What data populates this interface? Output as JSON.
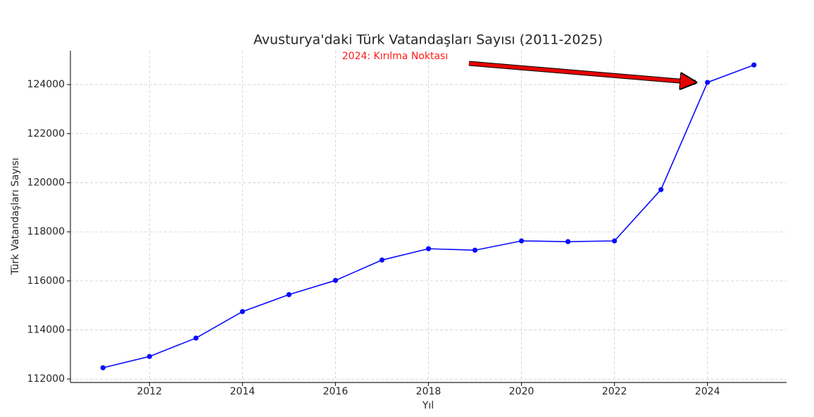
{
  "chart_data": {
    "type": "line",
    "title": "Avusturya'daki Türk Vatandaşları Sayısı (2011-2025)",
    "x_label": "Yıl",
    "y_label": "Türk Vatandaşları Sayısı",
    "annotation": "2024: Kırılma Noktası",
    "x": [
      2011,
      2012,
      2013,
      2014,
      2015,
      2016,
      2017,
      2018,
      2019,
      2020,
      2021,
      2022,
      2023,
      2024,
      2025
    ],
    "series": [
      {
        "name": "Türk Vatandaşları",
        "color": "#0a0aff",
        "values": [
          112460,
          112920,
          113670,
          114750,
          115440,
          116020,
          116850,
          117310,
          117250,
          117630,
          117600,
          117630,
          119720,
          124090,
          124800
        ]
      }
    ],
    "xlim": [
      2010.3,
      2025.7
    ],
    "ylim": [
      111860,
      125380
    ],
    "xticks": [
      2012,
      2014,
      2016,
      2018,
      2020,
      2022,
      2024
    ],
    "yticks": [
      112000,
      114000,
      116000,
      118000,
      120000,
      122000,
      124000
    ],
    "grid": true
  }
}
